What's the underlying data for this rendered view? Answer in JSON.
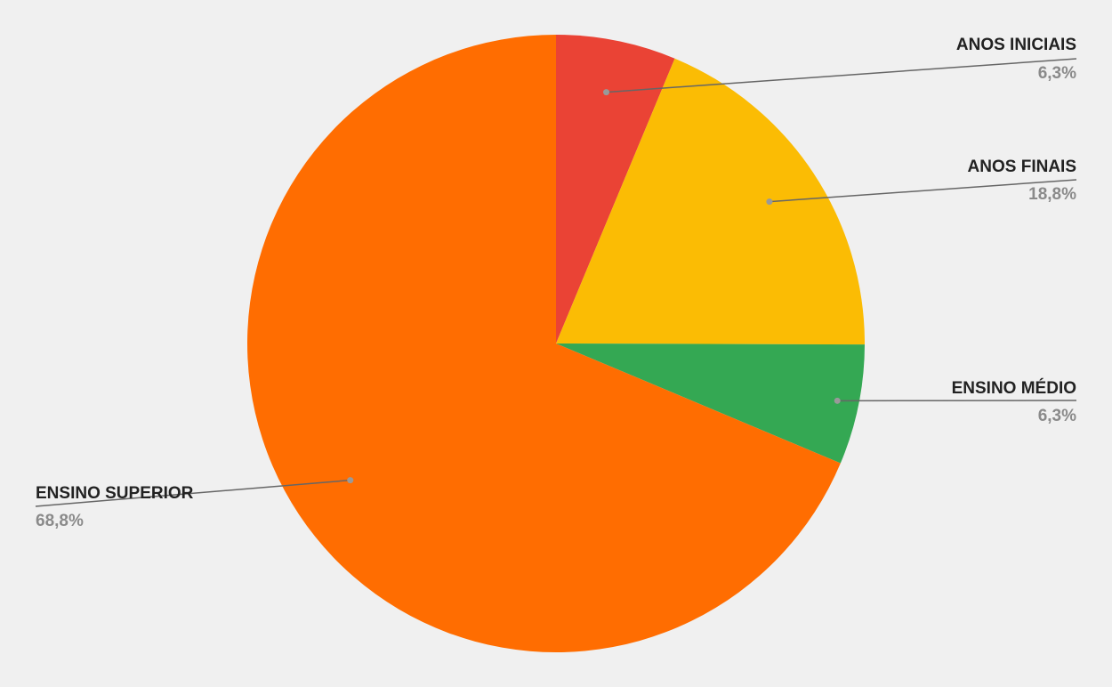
{
  "chart_data": {
    "type": "pie",
    "title": "",
    "slices": [
      {
        "label": "ANOS INICIAIS",
        "value": 6.3,
        "value_label": "6,3%",
        "color": "#ea4335"
      },
      {
        "label": "ANOS FINAIS",
        "value": 18.8,
        "value_label": "18,8%",
        "color": "#fbbc04"
      },
      {
        "label": "ENSINO MÉDIO",
        "value": 6.3,
        "value_label": "6,3%",
        "color": "#34a853"
      },
      {
        "label": "ENSINO SUPERIOR",
        "value": 68.8,
        "value_label": "68,8%",
        "color": "#ff6d01"
      }
    ],
    "legend": "none",
    "label_style": "callout"
  },
  "colors": {
    "background": "#f0f0f0",
    "label_text": "#222222",
    "value_text": "#8a8a8a",
    "leader_line": "#666666"
  }
}
